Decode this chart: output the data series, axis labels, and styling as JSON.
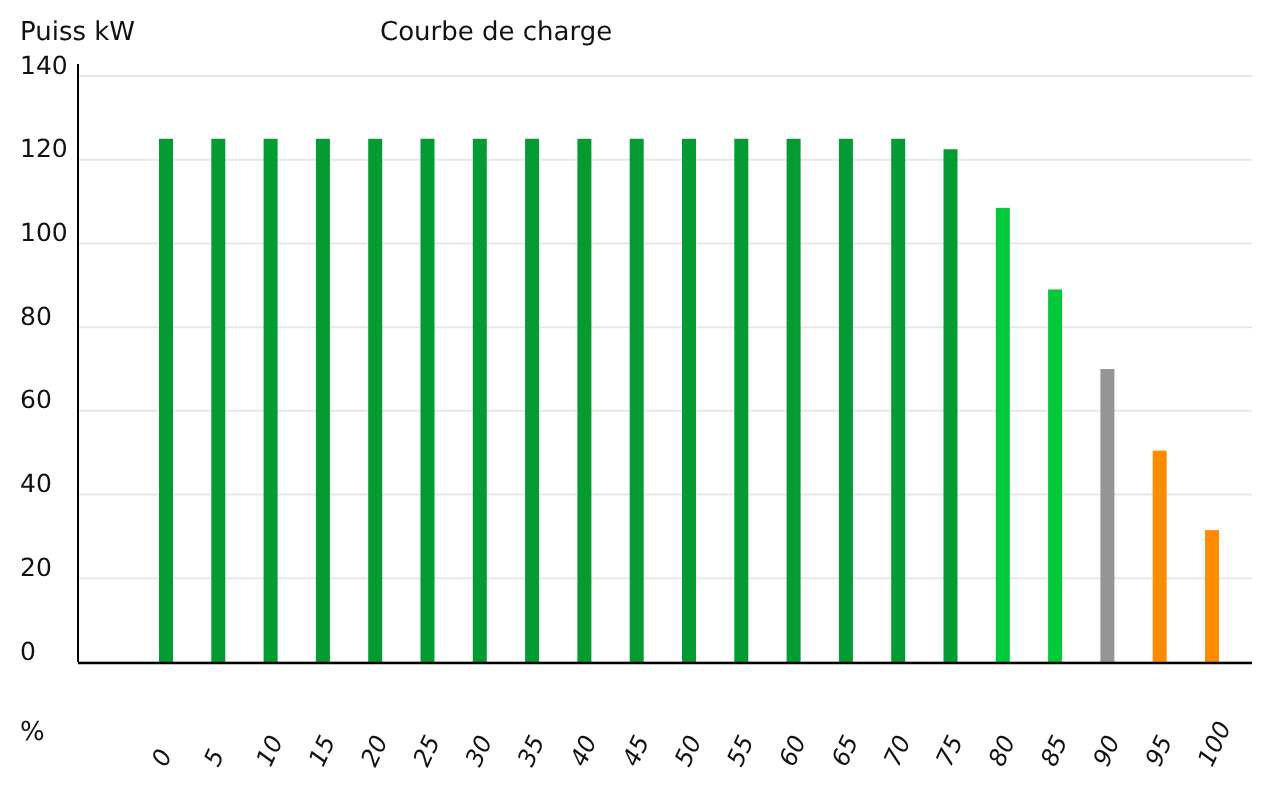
{
  "chart_data": {
    "type": "bar",
    "title": "Courbe de charge",
    "xlabel": "%",
    "ylabel": "Puiss kW",
    "categories": [
      "0",
      "5",
      "10",
      "15",
      "20",
      "25",
      "30",
      "35",
      "40",
      "45",
      "50",
      "55",
      "60",
      "65",
      "70",
      "75",
      "80",
      "85",
      "90",
      "95",
      "100"
    ],
    "values": [
      125,
      125,
      125,
      125,
      125,
      125,
      125,
      125,
      125,
      125,
      125,
      125,
      125,
      125,
      125,
      122.5,
      108.5,
      89,
      70,
      50.5,
      31.5
    ],
    "colors": [
      "#049c32",
      "#049c32",
      "#049c32",
      "#049c32",
      "#049c32",
      "#049c32",
      "#049c32",
      "#049c32",
      "#049c32",
      "#049c32",
      "#049c32",
      "#049c32",
      "#049c32",
      "#049c32",
      "#049c32",
      "#049c32",
      "#00c93a",
      "#00c93a",
      "#959595",
      "#ff8c00",
      "#ff8c00"
    ],
    "ylim": [
      0,
      140
    ],
    "yticks": [
      0,
      20,
      40,
      60,
      80,
      100,
      120,
      140
    ],
    "grid": "y"
  }
}
